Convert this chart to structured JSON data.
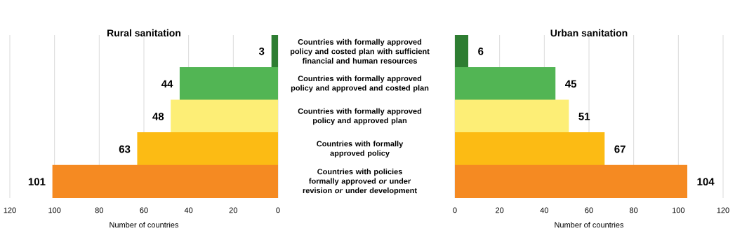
{
  "chart_data": [
    {
      "type": "bar",
      "orientation": "horizontal",
      "title": "Rural sanitation",
      "xlabel": "Number of countries",
      "categories": [
        "Countries with formally approved policy and costed plan with sufficient financial and human resources",
        "Countries with formally approved policy and approved and costed plan",
        "Countries with formally approved policy and approved plan",
        "Countries with formally approved policy",
        "Countries with policies formally approved *or* under revision *or* under development"
      ],
      "values": [
        3,
        44,
        48,
        63,
        101
      ],
      "colors": [
        "#2e7d32",
        "#52b554",
        "#fdee76",
        "#fcbb14",
        "#f58a22"
      ],
      "xlim": [
        120,
        0
      ],
      "xticks": [
        0,
        20,
        40,
        60,
        80,
        100,
        120
      ],
      "grid": "x",
      "data_labels": true
    },
    {
      "type": "bar",
      "orientation": "horizontal",
      "title": "Urban sanitation",
      "xlabel": "Number of countries",
      "values": [
        6,
        45,
        51,
        67,
        104
      ],
      "categories": [
        null,
        null,
        null,
        null,
        null
      ],
      "colors": [
        "#2e7d32",
        "#52b554",
        "#fdee76",
        "#fcbb14",
        "#f58a22"
      ],
      "xlim": [
        0,
        120
      ],
      "xticks": [
        0,
        20,
        40,
        60,
        80,
        100,
        120
      ],
      "grid": "x",
      "data_labels": true
    }
  ]
}
